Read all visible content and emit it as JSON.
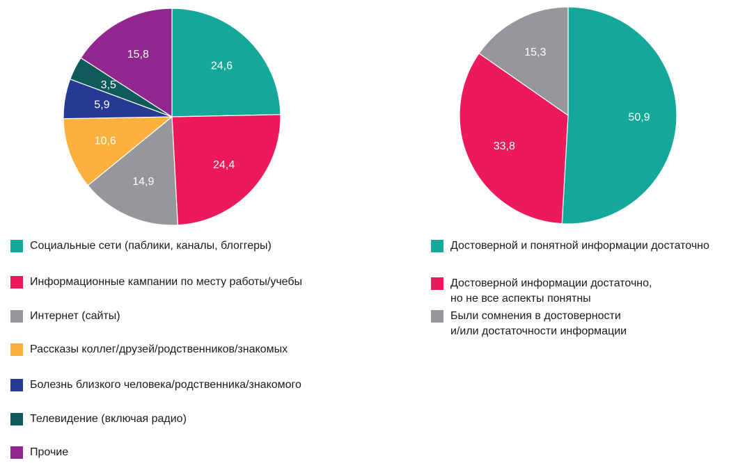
{
  "chart_data": [
    {
      "type": "pie",
      "start_angle_deg": 0,
      "direction": "clockwise",
      "slices": [
        {
          "label": "Социальные сети (паблики, каналы, блоггеры)",
          "value": 24.6,
          "value_text": "24,6",
          "color": "#14a89b"
        },
        {
          "label": "Информационные кампании по месту работы/учебы",
          "value": 24.4,
          "value_text": "24,4",
          "color": "#ec1a5b"
        },
        {
          "label": "Интернет (сайты)",
          "value": 14.9,
          "value_text": "14,9",
          "color": "#97969b"
        },
        {
          "label": "Рассказы коллег/друзей/родственников/знакомых",
          "value": 10.6,
          "value_text": "10,6",
          "color": "#fbb040"
        },
        {
          "label": "Болезнь близкого человека/родственника/знакомого",
          "value": 5.9,
          "value_text": "5,9",
          "color": "#263a93"
        },
        {
          "label": "Телевидение (включая радио)",
          "value": 3.5,
          "value_text": "3,5",
          "color": "#0f5b5c"
        },
        {
          "label": "Прочие",
          "value": 15.8,
          "value_text": "15,8",
          "color": "#92278f"
        }
      ]
    },
    {
      "type": "pie",
      "start_angle_deg": 0,
      "direction": "clockwise",
      "slices": [
        {
          "label": "Достоверной и понятной информации достаточно",
          "value": 50.9,
          "value_text": "50,9",
          "color": "#14a89b"
        },
        {
          "label": "Достоверной информации достаточно,\nно не все аспекты понятны",
          "value": 33.8,
          "value_text": "33,8",
          "color": "#ec1a5b"
        },
        {
          "label": "Были сомнения в достоверности\nи/или достаточности информации",
          "value": 15.3,
          "value_text": "15,3",
          "color": "#97969b"
        }
      ]
    }
  ]
}
